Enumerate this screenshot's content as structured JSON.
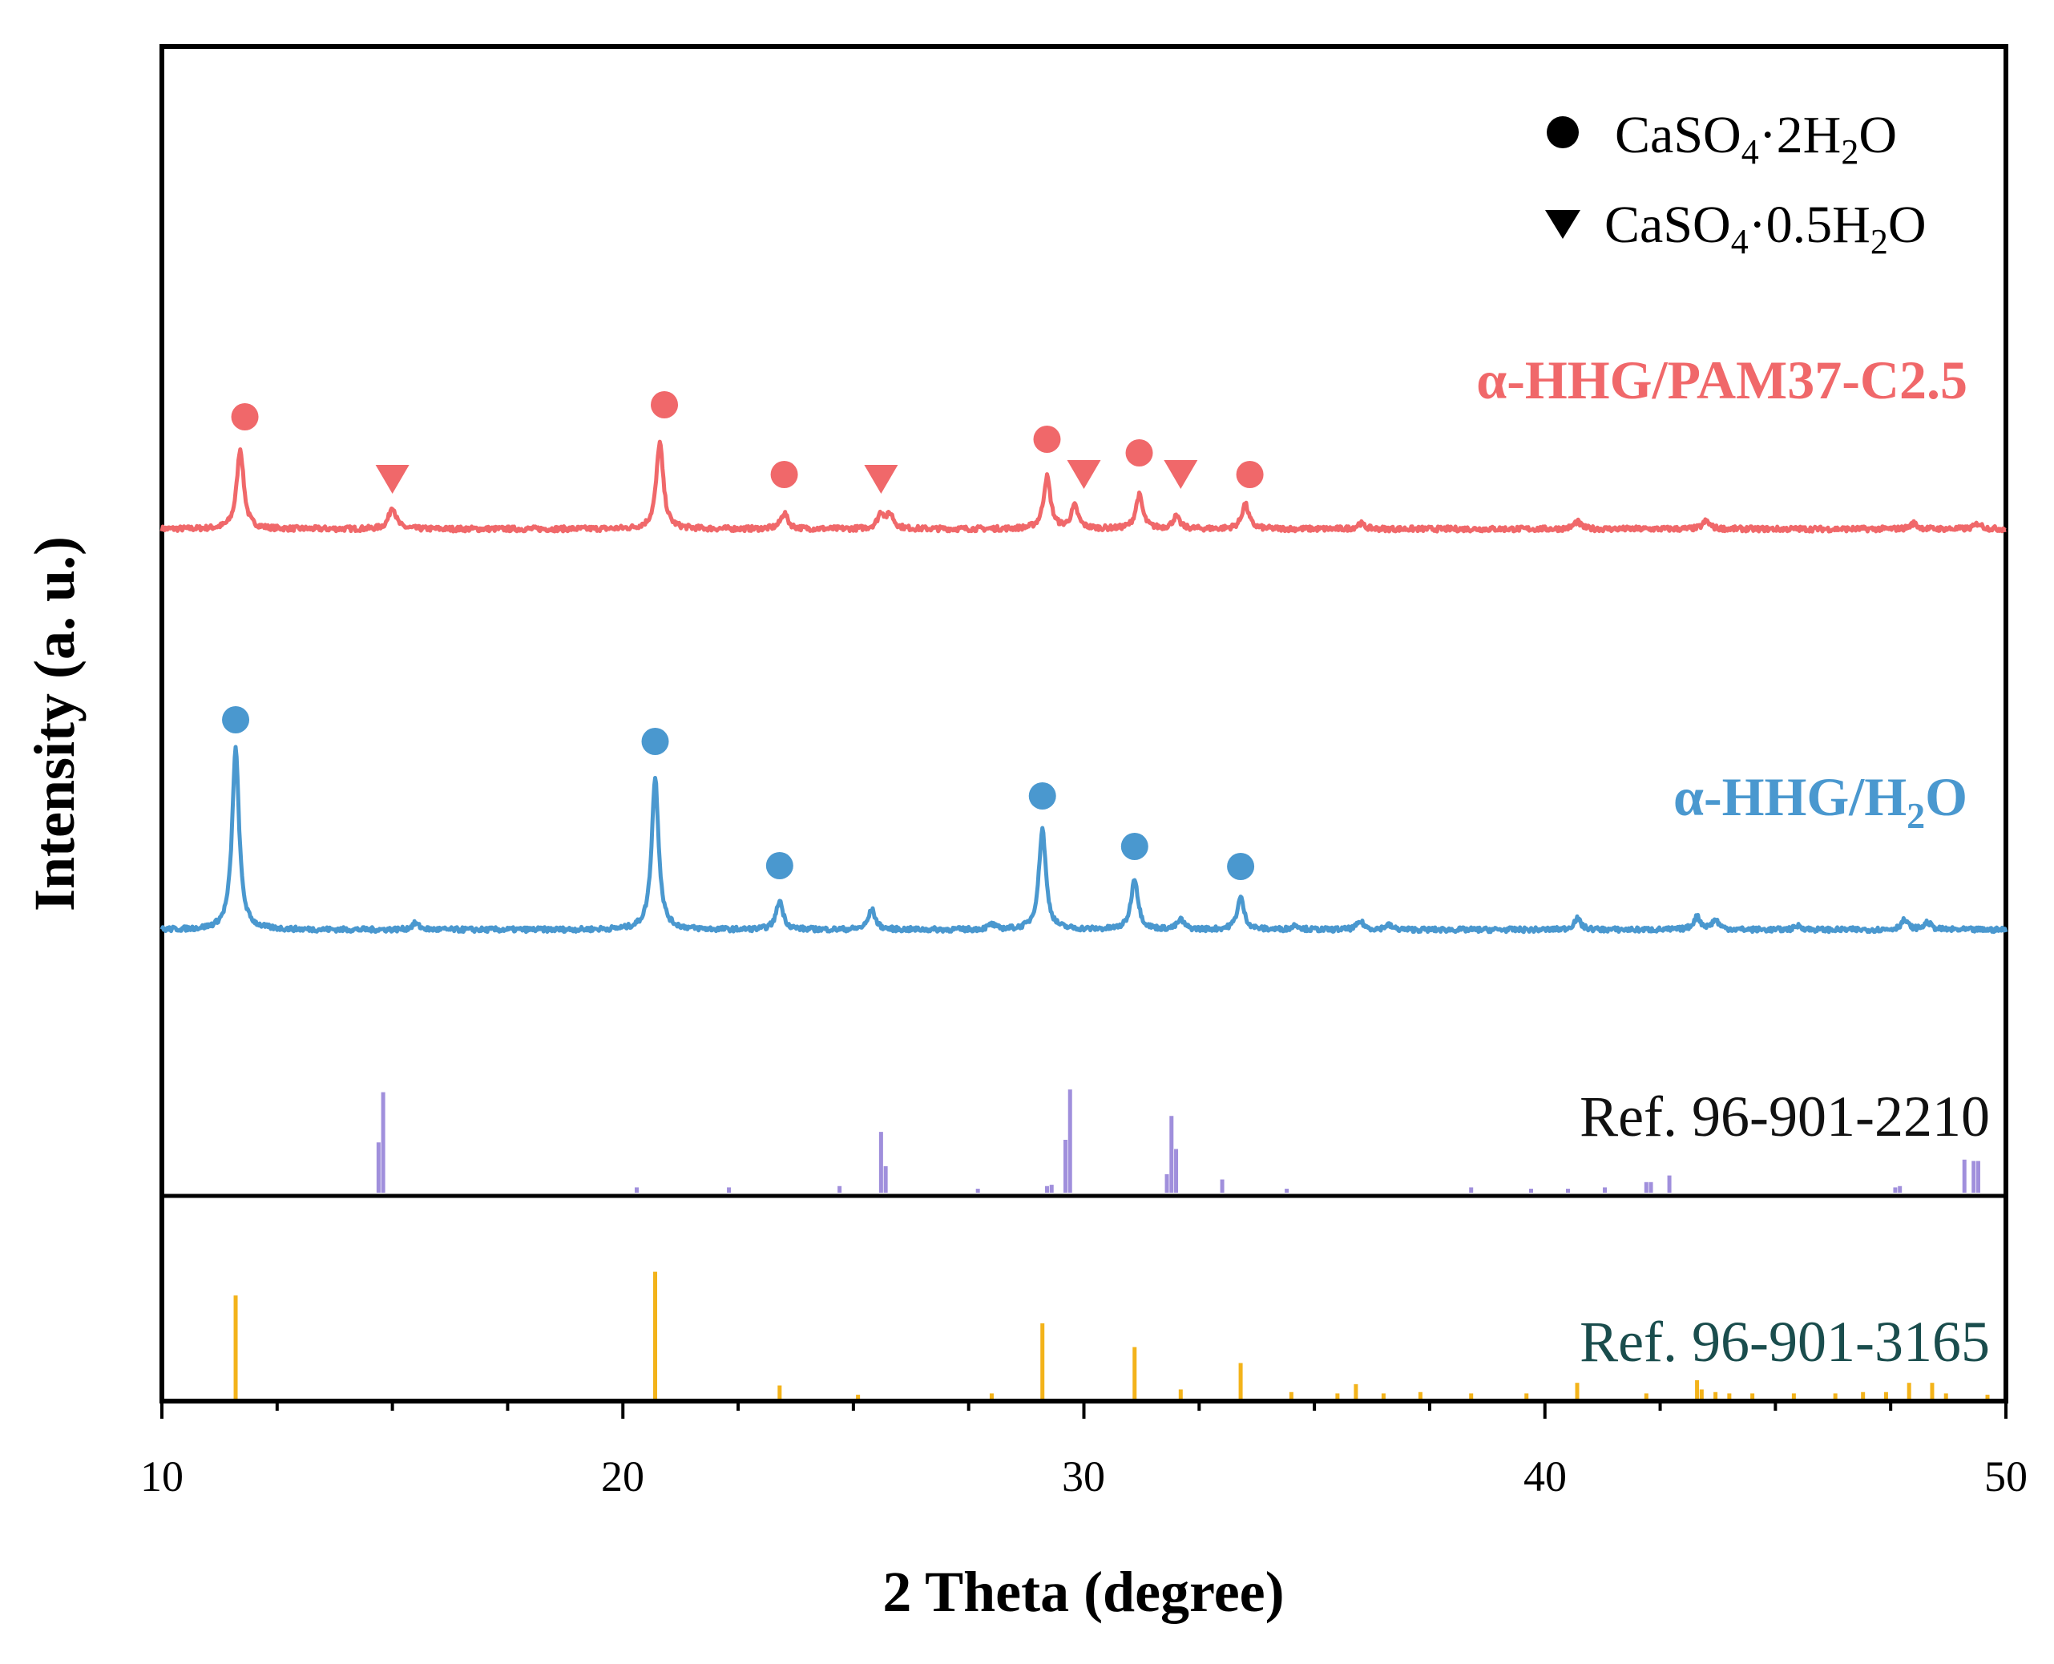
{
  "chart_data": {
    "type": "line",
    "title": "",
    "xlabel": "2 Theta (degree)",
    "ylabel": "Intensity (a. u.)",
    "xlim": [
      10,
      50
    ],
    "x_ticks": [
      "10",
      "20",
      "30",
      "40",
      "50"
    ],
    "grid": false,
    "legend": {
      "position": "top-right",
      "entries": [
        {
          "marker": "circle",
          "label_main": "CaSO",
          "sub1": "4",
          "mid": "·2H",
          "sub2": "2",
          "tail": "O"
        },
        {
          "marker": "triangle-down",
          "label_main": "CaSO",
          "sub1": "4",
          "mid": "·0.5H",
          "sub2": "2",
          "tail": "O"
        }
      ]
    },
    "series": [
      {
        "name_main": "α-HHG/PAM37-C2.5",
        "color": "#F0686A",
        "baseline": 0,
        "peaks": [
          [
            11.7,
            100
          ],
          [
            15.0,
            28
          ],
          [
            20.8,
            108
          ],
          [
            23.5,
            20
          ],
          [
            25.6,
            19
          ],
          [
            25.8,
            17
          ],
          [
            29.2,
            65
          ],
          [
            29.8,
            28
          ],
          [
            31.2,
            42
          ],
          [
            32.0,
            15
          ],
          [
            33.5,
            31
          ],
          [
            36.0,
            7
          ],
          [
            40.7,
            9
          ],
          [
            43.5,
            10
          ],
          [
            48.0,
            7
          ],
          [
            49.4,
            7
          ]
        ],
        "markers": [
          {
            "x": 11.8,
            "shape": "circle",
            "level": 140
          },
          {
            "x": 15.0,
            "shape": "triangle",
            "level": 62
          },
          {
            "x": 20.9,
            "shape": "circle",
            "level": 155
          },
          {
            "x": 23.5,
            "shape": "circle",
            "level": 68
          },
          {
            "x": 25.6,
            "shape": "triangle",
            "level": 62
          },
          {
            "x": 29.2,
            "shape": "circle",
            "level": 112
          },
          {
            "x": 30.0,
            "shape": "triangle",
            "level": 68
          },
          {
            "x": 31.2,
            "shape": "circle",
            "level": 95
          },
          {
            "x": 32.1,
            "shape": "triangle",
            "level": 68
          },
          {
            "x": 33.6,
            "shape": "circle",
            "level": 68
          }
        ]
      },
      {
        "name_main": "α-HHG/H",
        "name_sub": "2",
        "name_tail": "O",
        "color": "#4A98CF",
        "baseline": 0,
        "peaks": [
          [
            11.6,
            226
          ],
          [
            15.5,
            8
          ],
          [
            20.7,
            190
          ],
          [
            23.4,
            36
          ],
          [
            25.4,
            25
          ],
          [
            28.0,
            6
          ],
          [
            29.1,
            126
          ],
          [
            31.1,
            64
          ],
          [
            32.1,
            12
          ],
          [
            33.4,
            40
          ],
          [
            34.6,
            6
          ],
          [
            36.0,
            10
          ],
          [
            36.6,
            6
          ],
          [
            40.7,
            14
          ],
          [
            43.3,
            16
          ],
          [
            43.7,
            12
          ],
          [
            45.5,
            5
          ],
          [
            47.8,
            12
          ],
          [
            48.3,
            9
          ]
        ],
        "markers": [
          {
            "x": 11.6,
            "shape": "circle",
            "level": 262
          },
          {
            "x": 20.7,
            "shape": "circle",
            "level": 235
          },
          {
            "x": 23.4,
            "shape": "circle",
            "level": 80
          },
          {
            "x": 29.1,
            "shape": "circle",
            "level": 167
          },
          {
            "x": 31.1,
            "shape": "circle",
            "level": 104
          },
          {
            "x": 33.4,
            "shape": "circle",
            "level": 79
          }
        ]
      }
    ],
    "references": [
      {
        "label": "Ref. 96-901-2210",
        "color": "#A08FDC",
        "sticks": [
          [
            14.7,
            38
          ],
          [
            14.8,
            76
          ],
          [
            20.3,
            4
          ],
          [
            22.3,
            4
          ],
          [
            24.7,
            5
          ],
          [
            25.6,
            46
          ],
          [
            25.7,
            20
          ],
          [
            27.7,
            3
          ],
          [
            29.2,
            5
          ],
          [
            29.3,
            6
          ],
          [
            29.6,
            40
          ],
          [
            29.7,
            78
          ],
          [
            31.8,
            14
          ],
          [
            31.9,
            58
          ],
          [
            32.0,
            33
          ],
          [
            33.0,
            10
          ],
          [
            34.4,
            3
          ],
          [
            38.4,
            4
          ],
          [
            39.7,
            3
          ],
          [
            40.5,
            3
          ],
          [
            41.3,
            4
          ],
          [
            42.2,
            8
          ],
          [
            42.3,
            8
          ],
          [
            42.7,
            13
          ],
          [
            47.6,
            4
          ],
          [
            47.7,
            5
          ],
          [
            49.1,
            25
          ],
          [
            49.3,
            24
          ],
          [
            49.4,
            24
          ]
        ]
      },
      {
        "label": "Ref. 96-901-3165",
        "color": "#F3B31A",
        "sticks": [
          [
            11.6,
            78
          ],
          [
            20.7,
            96
          ],
          [
            23.4,
            10
          ],
          [
            25.1,
            3
          ],
          [
            28.0,
            4
          ],
          [
            29.1,
            57
          ],
          [
            31.1,
            39
          ],
          [
            32.1,
            7
          ],
          [
            33.4,
            27
          ],
          [
            34.5,
            5
          ],
          [
            35.5,
            4
          ],
          [
            35.9,
            11
          ],
          [
            36.5,
            4
          ],
          [
            37.3,
            5
          ],
          [
            38.4,
            4
          ],
          [
            39.6,
            4
          ],
          [
            40.7,
            12
          ],
          [
            42.2,
            4
          ],
          [
            43.3,
            14
          ],
          [
            43.4,
            7
          ],
          [
            43.7,
            5
          ],
          [
            44.0,
            4
          ],
          [
            44.5,
            4
          ],
          [
            45.4,
            4
          ],
          [
            46.3,
            4
          ],
          [
            46.9,
            5
          ],
          [
            47.4,
            5
          ],
          [
            47.9,
            12
          ],
          [
            48.4,
            12
          ],
          [
            48.7,
            4
          ],
          [
            49.6,
            3
          ]
        ]
      }
    ]
  }
}
